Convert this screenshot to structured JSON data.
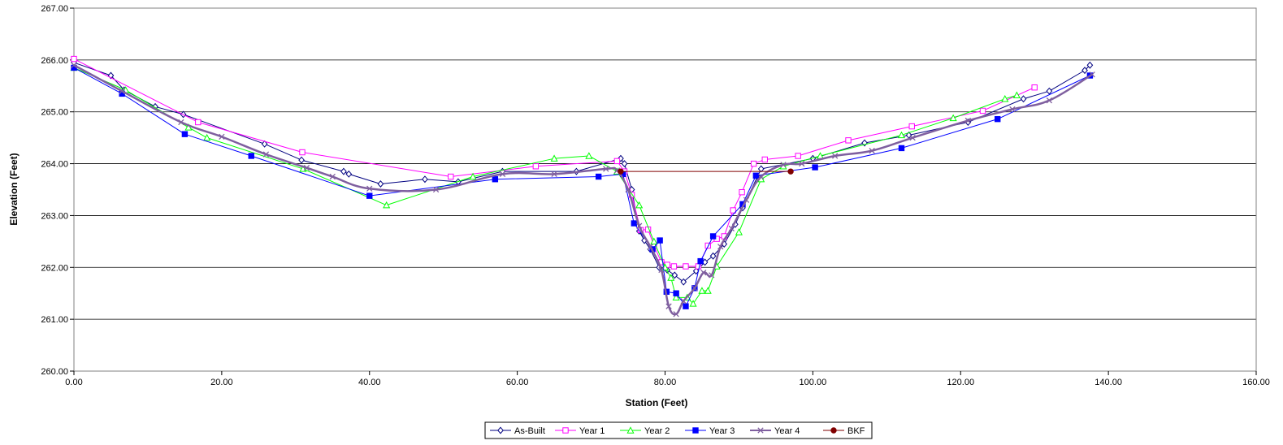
{
  "chart_data": {
    "type": "line",
    "title": "",
    "xlabel": "Station (Feet)",
    "ylabel": "Elevation (Feet)",
    "xlim": [
      0,
      160
    ],
    "ylim": [
      260,
      267
    ],
    "grid": "horizontal",
    "legend_position": "bottom",
    "x_ticks": [
      "0.00",
      "20.00",
      "40.00",
      "60.00",
      "80.00",
      "100.00",
      "120.00",
      "140.00",
      "160.00"
    ],
    "y_ticks": [
      "260.00",
      "261.00",
      "262.00",
      "263.00",
      "264.00",
      "265.00",
      "266.00",
      "267.00"
    ],
    "series": [
      {
        "name": "As-Built",
        "color": "#000080",
        "marker": "diamond-open",
        "width": 1,
        "points": [
          [
            0,
            265.95
          ],
          [
            5,
            265.7
          ],
          [
            6.8,
            265.42
          ],
          [
            11,
            265.1
          ],
          [
            14.8,
            264.95
          ],
          [
            25.8,
            264.38
          ],
          [
            30.8,
            264.07
          ],
          [
            36.5,
            263.85
          ],
          [
            37.2,
            263.8
          ],
          [
            41.5,
            263.61
          ],
          [
            47.5,
            263.7
          ],
          [
            52,
            263.65
          ],
          [
            58,
            263.85
          ],
          [
            68,
            263.85
          ],
          [
            74,
            264.1
          ],
          [
            74.5,
            264.0
          ],
          [
            75.5,
            263.5
          ],
          [
            76.5,
            262.7
          ],
          [
            77.2,
            262.52
          ],
          [
            78,
            262.35
          ],
          [
            79.2,
            262.0
          ],
          [
            80.3,
            261.95
          ],
          [
            81.3,
            261.85
          ],
          [
            82.5,
            261.72
          ],
          [
            84.2,
            261.93
          ],
          [
            85.4,
            262.1
          ],
          [
            86.5,
            262.22
          ],
          [
            88,
            262.45
          ],
          [
            89.5,
            262.83
          ],
          [
            90.5,
            263.15
          ],
          [
            92.5,
            263.75
          ],
          [
            93,
            263.9
          ],
          [
            100,
            264.1
          ],
          [
            107,
            264.4
          ],
          [
            113,
            264.55
          ],
          [
            121,
            264.8
          ],
          [
            128.5,
            265.25
          ],
          [
            132,
            265.4
          ],
          [
            136.8,
            265.8
          ],
          [
            137.5,
            265.9
          ]
        ]
      },
      {
        "name": "Year 1",
        "color": "#ff00ff",
        "marker": "square-open",
        "width": 1,
        "points": [
          [
            0,
            266.02
          ],
          [
            16.8,
            264.8
          ],
          [
            30.9,
            264.22
          ],
          [
            51,
            263.75
          ],
          [
            62.5,
            263.95
          ],
          [
            73.5,
            264.05
          ],
          [
            74.5,
            263.85
          ],
          [
            75.5,
            263.4
          ],
          [
            76.7,
            262.72
          ],
          [
            77.7,
            262.73
          ],
          [
            78.5,
            262.42
          ],
          [
            79.5,
            262.1
          ],
          [
            80.3,
            262.05
          ],
          [
            81.2,
            262.02
          ],
          [
            82.8,
            262.02
          ],
          [
            84.5,
            262.02
          ],
          [
            85.8,
            262.42
          ],
          [
            87,
            262.55
          ],
          [
            88,
            262.6
          ],
          [
            89.2,
            263.1
          ],
          [
            90.4,
            263.45
          ],
          [
            92,
            264.0
          ],
          [
            93.5,
            264.08
          ],
          [
            98,
            264.15
          ],
          [
            104.8,
            264.45
          ],
          [
            113.4,
            264.72
          ],
          [
            123,
            265.02
          ],
          [
            130,
            265.47
          ]
        ]
      },
      {
        "name": "Year 2",
        "color": "#00ff00",
        "marker": "triangle-open",
        "width": 1,
        "points": [
          [
            0,
            265.85
          ],
          [
            7,
            265.42
          ],
          [
            15.5,
            264.7
          ],
          [
            18,
            264.5
          ],
          [
            31,
            263.9
          ],
          [
            42.3,
            263.2
          ],
          [
            54,
            263.75
          ],
          [
            65,
            264.1
          ],
          [
            69.7,
            264.15
          ],
          [
            73.5,
            263.85
          ],
          [
            76.5,
            263.2
          ],
          [
            78.5,
            262.5
          ],
          [
            80,
            262.0
          ],
          [
            80.8,
            261.8
          ],
          [
            81.5,
            261.42
          ],
          [
            83,
            261.42
          ],
          [
            83.8,
            261.3
          ],
          [
            85,
            261.55
          ],
          [
            85.8,
            261.55
          ],
          [
            87,
            262.02
          ],
          [
            90,
            262.68
          ],
          [
            93,
            263.7
          ],
          [
            96,
            263.95
          ],
          [
            101,
            264.15
          ],
          [
            112,
            264.55
          ],
          [
            119,
            264.88
          ],
          [
            126,
            265.25
          ],
          [
            127.6,
            265.32
          ]
        ]
      },
      {
        "name": "Year 3",
        "color": "#0000ff",
        "marker": "square-filled",
        "width": 1,
        "points": [
          [
            0,
            265.85
          ],
          [
            6.5,
            265.35
          ],
          [
            15,
            264.57
          ],
          [
            24,
            264.15
          ],
          [
            40,
            263.38
          ],
          [
            57,
            263.7
          ],
          [
            71,
            263.75
          ],
          [
            74.3,
            263.8
          ],
          [
            75.8,
            262.85
          ],
          [
            78.3,
            262.35
          ],
          [
            79.3,
            262.52
          ],
          [
            80.2,
            261.53
          ],
          [
            81.5,
            261.5
          ],
          [
            82.8,
            261.25
          ],
          [
            84,
            261.6
          ],
          [
            84.8,
            262.12
          ],
          [
            86.5,
            262.6
          ],
          [
            90.5,
            263.22
          ],
          [
            92.3,
            263.77
          ],
          [
            100.3,
            263.93
          ],
          [
            112,
            264.3
          ],
          [
            125,
            264.86
          ],
          [
            137.5,
            265.7
          ]
        ]
      },
      {
        "name": "Year 4",
        "color": "#7f5f9f",
        "marker": "x",
        "width": 2.5,
        "smooth": true,
        "points": [
          [
            0,
            265.9
          ],
          [
            6.5,
            265.4
          ],
          [
            14.5,
            264.8
          ],
          [
            20,
            264.52
          ],
          [
            26,
            264.18
          ],
          [
            31.5,
            263.92
          ],
          [
            35,
            263.75
          ],
          [
            40,
            263.52
          ],
          [
            49,
            263.5
          ],
          [
            58,
            263.8
          ],
          [
            65,
            263.8
          ],
          [
            72,
            263.9
          ],
          [
            73.5,
            263.87
          ],
          [
            75,
            263.5
          ],
          [
            76.5,
            262.8
          ],
          [
            78,
            262.4
          ],
          [
            79.5,
            261.95
          ],
          [
            80.5,
            261.25
          ],
          [
            81.5,
            261.1
          ],
          [
            82.5,
            261.35
          ],
          [
            84,
            261.6
          ],
          [
            85.2,
            261.9
          ],
          [
            86.3,
            261.85
          ],
          [
            87.5,
            262.4
          ],
          [
            89,
            262.75
          ],
          [
            91,
            263.3
          ],
          [
            93,
            263.75
          ],
          [
            96,
            263.98
          ],
          [
            98.5,
            264.0
          ],
          [
            103,
            264.15
          ],
          [
            108,
            264.25
          ],
          [
            113.5,
            264.5
          ],
          [
            121,
            264.83
          ],
          [
            127,
            265.05
          ],
          [
            132,
            265.22
          ],
          [
            137.8,
            265.72
          ]
        ]
      },
      {
        "name": "BKF",
        "color": "#800000",
        "marker": "circle-filled",
        "width": 1,
        "points": [
          [
            74,
            263.85
          ],
          [
            97,
            263.85
          ]
        ]
      }
    ]
  }
}
